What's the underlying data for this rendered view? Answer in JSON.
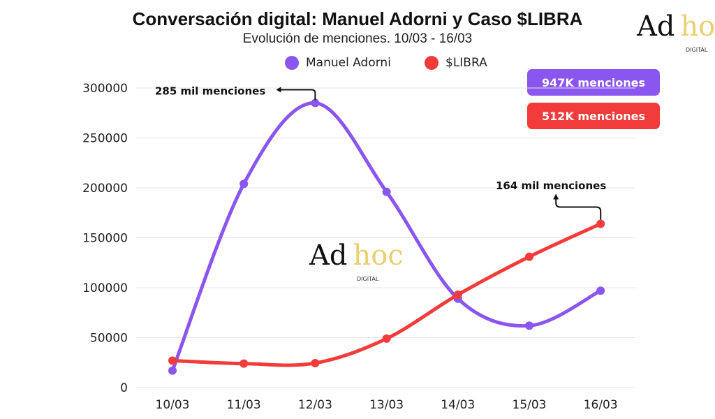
{
  "chart_data": {
    "type": "line",
    "title": "Conversación digital: Manuel Adorni y Caso $LIBRA",
    "subtitle": "Evolución de menciones.  10/03 - 16/03",
    "categories": [
      "10/03",
      "11/03",
      "12/03",
      "13/03",
      "14/03",
      "15/03",
      "16/03"
    ],
    "series": [
      {
        "name": "Manuel Adorni",
        "color": "#8B55F0",
        "values": [
          17000,
          204000,
          285000,
          196000,
          89000,
          62000,
          97000
        ]
      },
      {
        "name": "$LIBRA",
        "color": "#F23B3B",
        "values": [
          27000,
          24000,
          24500,
          49000,
          93000,
          131000,
          164000
        ]
      }
    ],
    "ylim": [
      0,
      300000
    ],
    "yticks": [
      "0",
      "50000",
      "100000",
      "150000",
      "200000",
      "250000",
      "300000"
    ],
    "grid": true,
    "legend": "top",
    "smooth": true,
    "annotations": [
      {
        "text": "285 mil menciones",
        "series": 0,
        "index": 2
      },
      {
        "text": "164 mil menciones",
        "series": 1,
        "index": 6
      }
    ]
  },
  "badges": [
    {
      "text": "947K menciones",
      "color": "#8B55F0"
    },
    {
      "text": "512K menciones",
      "color": "#F23B3B"
    }
  ],
  "logo": {
    "ad": "Ad",
    "hoc": "hoc",
    "digital": "DIGITAL"
  }
}
